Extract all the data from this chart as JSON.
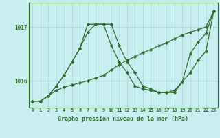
{
  "xlabel": "Graphe pression niveau de la mer (hPa)",
  "background_color": "#c8eef0",
  "grid_color": "#a0d8dc",
  "line_color": "#2d6e2d",
  "ylim": [
    1015.5,
    1017.45
  ],
  "xlim": [
    -0.5,
    23.5
  ],
  "yticks": [
    1016,
    1017
  ],
  "xticks": [
    0,
    1,
    2,
    3,
    4,
    5,
    6,
    7,
    8,
    9,
    10,
    11,
    12,
    13,
    14,
    15,
    16,
    17,
    18,
    19,
    20,
    21,
    22,
    23
  ],
  "series": [
    [
      1015.62,
      1015.62,
      1015.72,
      1015.82,
      1015.88,
      1015.92,
      1015.96,
      1016.0,
      1016.05,
      1016.1,
      1016.2,
      1016.3,
      1016.38,
      1016.45,
      1016.52,
      1016.58,
      1016.65,
      1016.7,
      1016.78,
      1016.85,
      1016.9,
      1016.95,
      1017.0,
      1017.3
    ],
    [
      1015.62,
      1015.62,
      1015.72,
      1015.9,
      1016.1,
      1016.35,
      1016.6,
      1016.9,
      1017.05,
      1017.05,
      1016.65,
      1016.35,
      1016.15,
      1015.9,
      1015.85,
      1015.82,
      1015.78,
      1015.78,
      1015.82,
      1015.98,
      1016.15,
      1016.38,
      1016.55,
      1017.3
    ],
    [
      1015.62,
      1015.62,
      1015.72,
      1015.9,
      1016.1,
      1016.35,
      1016.6,
      1017.05,
      1017.05,
      1017.05,
      1017.05,
      1016.65,
      1016.35,
      1016.15,
      1015.9,
      1015.85,
      1015.78,
      1015.78,
      1015.78,
      1015.98,
      1016.5,
      1016.72,
      1016.88,
      1017.3
    ]
  ]
}
